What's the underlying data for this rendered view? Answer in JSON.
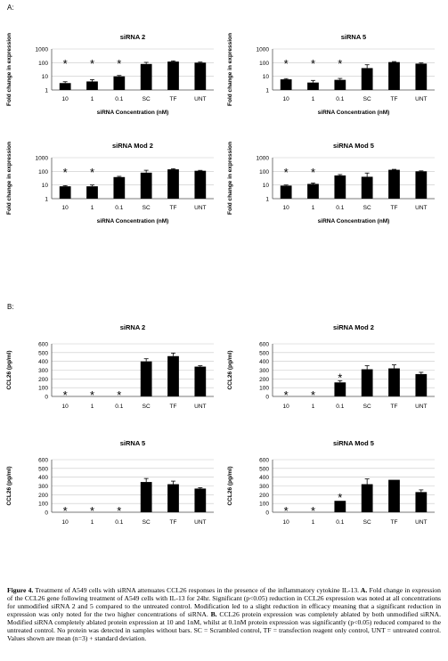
{
  "panel_labels": {
    "a": "A:",
    "b": "B:"
  },
  "chart_data": [
    {
      "id": "A1",
      "type": "bar",
      "scale": "log",
      "title": "siRNA 2",
      "xlabel": "siRNA Concentration (nM)",
      "ylabel": "Fold change in expression",
      "categories": [
        "10",
        "1",
        "0.1",
        "SC",
        "TF",
        "UNT"
      ],
      "values": [
        3.2,
        4.2,
        10,
        80,
        120,
        100
      ],
      "errors": [
        0.8,
        1.5,
        1.5,
        25,
        15,
        10
      ],
      "significant": [
        true,
        true,
        true,
        false,
        false,
        false
      ],
      "ylim": [
        1,
        1000
      ],
      "yticks": [
        1,
        10,
        100,
        1000
      ],
      "ytick_labels": [
        "1",
        "10",
        "100",
        "1000"
      ]
    },
    {
      "id": "A2",
      "type": "bar",
      "scale": "log",
      "title": "siRNA 5",
      "xlabel": "siRNA Concentration (nM)",
      "ylabel": "Fold change in expression",
      "categories": [
        "10",
        "1",
        "0.1",
        "SC",
        "TF",
        "UNT"
      ],
      "values": [
        6,
        3.5,
        5.5,
        40,
        110,
        85
      ],
      "errors": [
        0.8,
        1.5,
        1.5,
        30,
        10,
        10
      ],
      "significant": [
        true,
        true,
        true,
        false,
        false,
        false
      ],
      "ylim": [
        1,
        1000
      ],
      "yticks": [
        1,
        10,
        100,
        1000
      ],
      "ytick_labels": [
        "1",
        "10",
        "100",
        "1000"
      ]
    },
    {
      "id": "A3",
      "type": "bar",
      "scale": "log",
      "title": "siRNA Mod 2",
      "xlabel": "siRNA Concentration (nM)",
      "ylabel": "Fold change in expression",
      "categories": [
        "10",
        "1",
        "0.1",
        "SC",
        "TF",
        "UNT"
      ],
      "values": [
        8,
        8,
        38,
        80,
        140,
        110
      ],
      "errors": [
        1,
        2,
        5,
        40,
        15,
        8
      ],
      "significant": [
        true,
        true,
        false,
        false,
        false,
        false
      ],
      "ylim": [
        1,
        1000
      ],
      "yticks": [
        1,
        10,
        100,
        1000
      ],
      "ytick_labels": [
        "1",
        "10",
        "100",
        "1000"
      ]
    },
    {
      "id": "A4",
      "type": "bar",
      "scale": "log",
      "title": "siRNA Mod 5",
      "xlabel": "siRNA Concentration (nM)",
      "ylabel": "Fold change in expression",
      "categories": [
        "10",
        "1",
        "0.1",
        "SC",
        "TF",
        "UNT"
      ],
      "values": [
        9,
        12,
        50,
        40,
        130,
        100
      ],
      "errors": [
        1,
        2,
        8,
        35,
        10,
        8
      ],
      "significant": [
        true,
        true,
        false,
        false,
        false,
        false
      ],
      "ylim": [
        1,
        1000
      ],
      "yticks": [
        1,
        10,
        100,
        1000
      ],
      "ytick_labels": [
        "1",
        "10",
        "100",
        "1000"
      ]
    },
    {
      "id": "B1",
      "type": "bar",
      "scale": "linear",
      "title": "siRNA 2",
      "xlabel": "",
      "ylabel": "CCL26 (pg/ml)",
      "categories": [
        "10",
        "1",
        "0.1",
        "SC",
        "TF",
        "UNT"
      ],
      "values": [
        0,
        0,
        0,
        400,
        460,
        340
      ],
      "errors": [
        0,
        0,
        0,
        30,
        35,
        10
      ],
      "significant": [
        true,
        true,
        true,
        false,
        false,
        false
      ],
      "ylim": [
        0,
        600
      ],
      "yticks": [
        0,
        100,
        200,
        300,
        400,
        500,
        600
      ],
      "ytick_labels": [
        "0",
        "100",
        "200",
        "300",
        "400",
        "500",
        "600"
      ]
    },
    {
      "id": "B2",
      "type": "bar",
      "scale": "linear",
      "title": "siRNA Mod 2",
      "xlabel": "",
      "ylabel": "CCL26 (pg/ml)",
      "categories": [
        "10",
        "1",
        "0.1",
        "SC",
        "TF",
        "UNT"
      ],
      "values": [
        0,
        0,
        160,
        310,
        320,
        255
      ],
      "errors": [
        0,
        0,
        20,
        40,
        40,
        20
      ],
      "significant": [
        true,
        true,
        true,
        false,
        false,
        false
      ],
      "ylim": [
        0,
        600
      ],
      "yticks": [
        0,
        100,
        200,
        300,
        400,
        500,
        600
      ],
      "ytick_labels": [
        "0",
        "100",
        "200",
        "300",
        "400",
        "500",
        "600"
      ]
    },
    {
      "id": "B3",
      "type": "bar",
      "scale": "linear",
      "title": "siRNA 5",
      "xlabel": "",
      "ylabel": "CCL26 (pg/ml)",
      "categories": [
        "10",
        "1",
        "0.1",
        "SC",
        "TF",
        "UNT"
      ],
      "values": [
        0,
        0,
        0,
        345,
        320,
        270
      ],
      "errors": [
        0,
        0,
        0,
        40,
        35,
        10
      ],
      "significant": [
        true,
        true,
        true,
        false,
        false,
        false
      ],
      "ylim": [
        0,
        600
      ],
      "yticks": [
        0,
        100,
        200,
        300,
        400,
        500,
        600
      ],
      "ytick_labels": [
        "0",
        "100",
        "200",
        "300",
        "400",
        "500",
        "600"
      ]
    },
    {
      "id": "B4",
      "type": "bar",
      "scale": "linear",
      "title": "siRNA Mod 5",
      "xlabel": "",
      "ylabel": "CCL26 (pg/ml)",
      "categories": [
        "10",
        "1",
        "0.1",
        "SC",
        "TF",
        "UNT"
      ],
      "values": [
        0,
        0,
        130,
        320,
        370,
        230
      ],
      "errors": [
        0,
        0,
        0,
        60,
        0,
        25
      ],
      "significant": [
        true,
        true,
        true,
        false,
        false,
        false
      ],
      "ylim": [
        0,
        600
      ],
      "yticks": [
        0,
        100,
        200,
        300,
        400,
        500,
        600
      ],
      "ytick_labels": [
        "0",
        "100",
        "200",
        "300",
        "400",
        "500",
        "600"
      ]
    }
  ],
  "caption": {
    "fig_label": "Figure 4.",
    "body": " Treatment of A549 cells with siRNA attenuates CCL26 responses in the presence of the inflammatory cytokine IL-13.",
    "a_label": " A.",
    "a_text": " Fold change in expression of the CCL26 gene following treatment of A549 cells with IL-13 for 24hr.  Significant (p<0.05) reduction in CCL26 expression was noted at all concentrations for unmodified siRNA 2 and 5 compared to the untreated control.  Modification led to a slight reduction in efficacy meaning that a significant reduction in expression was only noted for the two higher concentrations of siRNA.",
    "b_label": "  B.",
    "b_text": " CCL26 protein expression was completely ablated by both unmodified siRNA.  Modified siRNA completely ablated protein expression at 10 and 1nM, whilst at 0.1nM protein expression was significantly (p<0.05) reduced compared to the untreated control.  No protein was detected in samples without bars.  SC = Scrambled control, TF = transfection reagent only control, UNT = untreated control.  Values shown are mean (n=3) + standard deviation."
  }
}
